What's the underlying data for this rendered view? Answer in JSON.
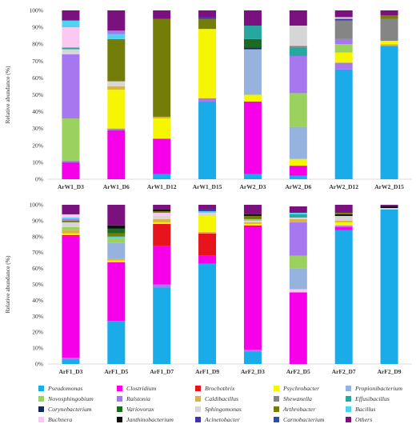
{
  "chart_data": [
    {
      "type": "bar",
      "stacked": true,
      "ylabel": "Relative abundance (%)",
      "ylim": [
        0,
        100
      ],
      "yticks": [
        "0%",
        "10%",
        "20%",
        "30%",
        "40%",
        "50%",
        "60%",
        "70%",
        "80%",
        "90%",
        "100%"
      ],
      "categories": [
        "ArW1_D3",
        "ArW1_D6",
        "ArW1_D12",
        "ArW1_D15",
        "ArW2_D3",
        "ArW2_D6",
        "ArW2_D12",
        "ArW2_D15"
      ],
      "stacks": [
        [
          {
            "genus": "Clostridium",
            "value": 10
          },
          {
            "genus": "Ralstonia",
            "value": 1
          },
          {
            "genus": "Novosphingobium",
            "value": 25
          },
          {
            "genus": "Ralstonia",
            "value": 38
          },
          {
            "genus": "Sphingomonas",
            "value": 3
          },
          {
            "genus": "Effusibacillus",
            "value": 1
          },
          {
            "genus": "Buchnera",
            "value": 12
          },
          {
            "genus": "Bacillus",
            "value": 4
          },
          {
            "genus": "Others",
            "value": 6
          }
        ],
        [
          {
            "genus": "Clostridium",
            "value": 29
          },
          {
            "genus": "Ralstonia",
            "value": 1
          },
          {
            "genus": "Psychrobacter",
            "value": 23
          },
          {
            "genus": "Caldibacillus",
            "value": 2
          },
          {
            "genus": "Sphingomonas",
            "value": 3
          },
          {
            "genus": "Arthrobacter",
            "value": 25
          },
          {
            "genus": "Bacillus",
            "value": 3
          },
          {
            "genus": "Ralstonia",
            "value": 2
          },
          {
            "genus": "Others",
            "value": 12
          }
        ],
        [
          {
            "genus": "Pseudomonas",
            "value": 3
          },
          {
            "genus": "Clostridium",
            "value": 21
          },
          {
            "genus": "Psychrobacter",
            "value": 12
          },
          {
            "genus": "Caldibacillus",
            "value": 1
          },
          {
            "genus": "Arthrobacter",
            "value": 58
          },
          {
            "genus": "Others",
            "value": 5
          }
        ],
        [
          {
            "genus": "Pseudomonas",
            "value": 46
          },
          {
            "genus": "Ralstonia",
            "value": 2
          },
          {
            "genus": "Psychrobacter",
            "value": 41
          },
          {
            "genus": "Arthrobacter",
            "value": 6
          },
          {
            "genus": "Acinetobacter",
            "value": 1
          },
          {
            "genus": "Others",
            "value": 4
          }
        ],
        [
          {
            "genus": "Pseudomonas",
            "value": 3
          },
          {
            "genus": "Clostridium",
            "value": 43
          },
          {
            "genus": "Psychrobacter",
            "value": 4
          },
          {
            "genus": "Propionibacterium",
            "value": 27
          },
          {
            "genus": "Corynebacterium",
            "value": 1
          },
          {
            "genus": "Variovorax",
            "value": 5
          },
          {
            "genus": "Effusibacillus",
            "value": 8
          },
          {
            "genus": "Others",
            "value": 9
          }
        ],
        [
          {
            "genus": "Pseudomonas",
            "value": 2
          },
          {
            "genus": "Clostridium",
            "value": 6
          },
          {
            "genus": "Psychrobacter",
            "value": 4
          },
          {
            "genus": "Propionibacterium",
            "value": 19
          },
          {
            "genus": "Novosphingobium",
            "value": 20
          },
          {
            "genus": "Ralstonia",
            "value": 22
          },
          {
            "genus": "Effusibacillus",
            "value": 5
          },
          {
            "genus": "Shewanella",
            "value": 1
          },
          {
            "genus": "Sphingomonas",
            "value": 12
          },
          {
            "genus": "Others",
            "value": 9
          }
        ],
        [
          {
            "genus": "Pseudomonas",
            "value": 65
          },
          {
            "genus": "Ralstonia",
            "value": 4
          },
          {
            "genus": "Psychrobacter",
            "value": 6
          },
          {
            "genus": "Novosphingobium",
            "value": 5
          },
          {
            "genus": "Ralstonia",
            "value": 3
          },
          {
            "genus": "Shewanella",
            "value": 11
          },
          {
            "genus": "Acinetobacter",
            "value": 1
          },
          {
            "genus": "Sphingomonas",
            "value": 1
          },
          {
            "genus": "Others",
            "value": 4
          }
        ],
        [
          {
            "genus": "Pseudomonas",
            "value": 79
          },
          {
            "genus": "Caldibacillus",
            "value": 1
          },
          {
            "genus": "Psychrobacter",
            "value": 2
          },
          {
            "genus": "Shewanella",
            "value": 13
          },
          {
            "genus": "Arthrobacter",
            "value": 2
          },
          {
            "genus": "Others",
            "value": 3
          }
        ]
      ]
    },
    {
      "type": "bar",
      "stacked": true,
      "ylabel": "Relative abundance (%)",
      "ylim": [
        0,
        100
      ],
      "yticks": [
        "0%",
        "10%",
        "20%",
        "30%",
        "40%",
        "50%",
        "60%",
        "70%",
        "80%",
        "90%",
        "100%"
      ],
      "categories": [
        "ArF1_D3",
        "ArF1_D5",
        "ArF1_D7",
        "ArF1_D9",
        "ArF2_D3",
        "ArF2_D5",
        "ArF2_D7",
        "ArF2_D9"
      ],
      "stacks": [
        [
          {
            "genus": "Pseudomonas",
            "value": 3
          },
          {
            "genus": "Ralstonia",
            "value": 1
          },
          {
            "genus": "Clostridium",
            "value": 76
          },
          {
            "genus": "Brochothrix",
            "value": 1
          },
          {
            "genus": "Psychrobacter",
            "value": 1
          },
          {
            "genus": "Caldibacillus",
            "value": 2
          },
          {
            "genus": "Novosphingobium",
            "value": 2
          },
          {
            "genus": "Sphingomonas",
            "value": 3
          },
          {
            "genus": "Arthrobacter",
            "value": 1
          },
          {
            "genus": "Ralstonia",
            "value": 1
          },
          {
            "genus": "Bacillus",
            "value": 1
          },
          {
            "genus": "Buchnera",
            "value": 2
          },
          {
            "genus": "Others",
            "value": 6
          }
        ],
        [
          {
            "genus": "Pseudomonas",
            "value": 27
          },
          {
            "genus": "Clostridium",
            "value": 37
          },
          {
            "genus": "Psychrobacter",
            "value": 1
          },
          {
            "genus": "Caldibacillus",
            "value": 1
          },
          {
            "genus": "Propionibacterium",
            "value": 10
          },
          {
            "genus": "Novosphingobium",
            "value": 3
          },
          {
            "genus": "Bacillus",
            "value": 1
          },
          {
            "genus": "Arthrobacter",
            "value": 2
          },
          {
            "genus": "Variovorax",
            "value": 3
          },
          {
            "genus": "Janthinobacterium",
            "value": 2
          },
          {
            "genus": "Others",
            "value": 13
          }
        ],
        [
          {
            "genus": "Pseudomonas",
            "value": 48
          },
          {
            "genus": "Ralstonia",
            "value": 2
          },
          {
            "genus": "Clostridium",
            "value": 24
          },
          {
            "genus": "Brochothrix",
            "value": 14
          },
          {
            "genus": "Psychrobacter",
            "value": 1
          },
          {
            "genus": "Caldibacillus",
            "value": 2
          },
          {
            "genus": "Sphingomonas",
            "value": 2
          },
          {
            "genus": "Buchnera",
            "value": 2
          },
          {
            "genus": "Arthrobacter",
            "value": 1
          },
          {
            "genus": "Janthinobacterium",
            "value": 1
          },
          {
            "genus": "Others",
            "value": 3
          }
        ],
        [
          {
            "genus": "Pseudomonas",
            "value": 63
          },
          {
            "genus": "Clostridium",
            "value": 5
          },
          {
            "genus": "Brochothrix",
            "value": 14
          },
          {
            "genus": "Caldibacillus",
            "value": 1
          },
          {
            "genus": "Psychrobacter",
            "value": 10
          },
          {
            "genus": "Sphingomonas",
            "value": 2
          },
          {
            "genus": "Bacillus",
            "value": 1
          },
          {
            "genus": "Acinetobacter",
            "value": 1
          },
          {
            "genus": "Others",
            "value": 3
          }
        ],
        [
          {
            "genus": "Pseudomonas",
            "value": 8
          },
          {
            "genus": "Ralstonia",
            "value": 1
          },
          {
            "genus": "Clostridium",
            "value": 77
          },
          {
            "genus": "Brochothrix",
            "value": 1
          },
          {
            "genus": "Psychrobacter",
            "value": 1
          },
          {
            "genus": "Caldibacillus",
            "value": 1
          },
          {
            "genus": "Sphingomonas",
            "value": 1
          },
          {
            "genus": "Novosphingobium",
            "value": 1
          },
          {
            "genus": "Arthrobacter",
            "value": 2
          },
          {
            "genus": "Janthinobacterium",
            "value": 1
          },
          {
            "genus": "Others",
            "value": 6
          }
        ],
        [
          {
            "genus": "Clostridium",
            "value": 45
          },
          {
            "genus": "Buchnera",
            "value": 2
          },
          {
            "genus": "Propionibacterium",
            "value": 13
          },
          {
            "genus": "Novosphingobium",
            "value": 8
          },
          {
            "genus": "Ralstonia",
            "value": 21
          },
          {
            "genus": "Caldibacillus",
            "value": 2
          },
          {
            "genus": "Sphingomonas",
            "value": 1
          },
          {
            "genus": "Effusibacillus",
            "value": 2
          },
          {
            "genus": "Bacillus",
            "value": 1
          },
          {
            "genus": "Others",
            "value": 4
          }
        ],
        [
          {
            "genus": "Pseudomonas",
            "value": 84
          },
          {
            "genus": "Clostridium",
            "value": 2
          },
          {
            "genus": "Ralstonia",
            "value": 1
          },
          {
            "genus": "Psychrobacter",
            "value": 2
          },
          {
            "genus": "Caldibacillus",
            "value": 1
          },
          {
            "genus": "Sphingomonas",
            "value": 3
          },
          {
            "genus": "Janthinobacterium",
            "value": 1
          },
          {
            "genus": "Arthrobacter",
            "value": 1
          },
          {
            "genus": "Others",
            "value": 5
          }
        ],
        [
          {
            "genus": "Pseudomonas",
            "value": 97
          },
          {
            "genus": "Sphingomonas",
            "value": 1
          },
          {
            "genus": "Janthinobacterium",
            "value": 1
          },
          {
            "genus": "Others",
            "value": 1
          }
        ]
      ]
    }
  ],
  "legend": {
    "placement": "bottom",
    "columns": 5,
    "items": [
      {
        "genus": "Pseudomonas",
        "color": "#1aace8"
      },
      {
        "genus": "Clostridium",
        "color": "#f500e8"
      },
      {
        "genus": "Brochothrix",
        "color": "#e8141c"
      },
      {
        "genus": "Psychrobacter",
        "color": "#f6f600"
      },
      {
        "genus": "Propionibacterium",
        "color": "#96b2de"
      },
      {
        "genus": "Novosphingobium",
        "color": "#9bd15e"
      },
      {
        "genus": "Ralstonia",
        "color": "#a678f0"
      },
      {
        "genus": "Caldibacillus",
        "color": "#d9b24c"
      },
      {
        "genus": "Shewanella",
        "color": "#858585"
      },
      {
        "genus": "Effusibacillus",
        "color": "#26a7a0"
      },
      {
        "genus": "Corynebacterium",
        "color": "#152a52"
      },
      {
        "genus": "Variovorax",
        "color": "#1d6b22"
      },
      {
        "genus": "Sphingomonas",
        "color": "#d6d6d6"
      },
      {
        "genus": "Arthrobacter",
        "color": "#747d08"
      },
      {
        "genus": "Bacillus",
        "color": "#4fd3ee"
      },
      {
        "genus": "Buchnera",
        "color": "#fac8f0"
      },
      {
        "genus": "Janthinobacterium",
        "color": "#0d0d0d"
      },
      {
        "genus": "Acinetobacter",
        "color": "#4133b0"
      },
      {
        "genus": "Carnobacterium",
        "color": "#2e4f9e"
      },
      {
        "genus": "Others",
        "color": "#7a117f"
      }
    ]
  }
}
